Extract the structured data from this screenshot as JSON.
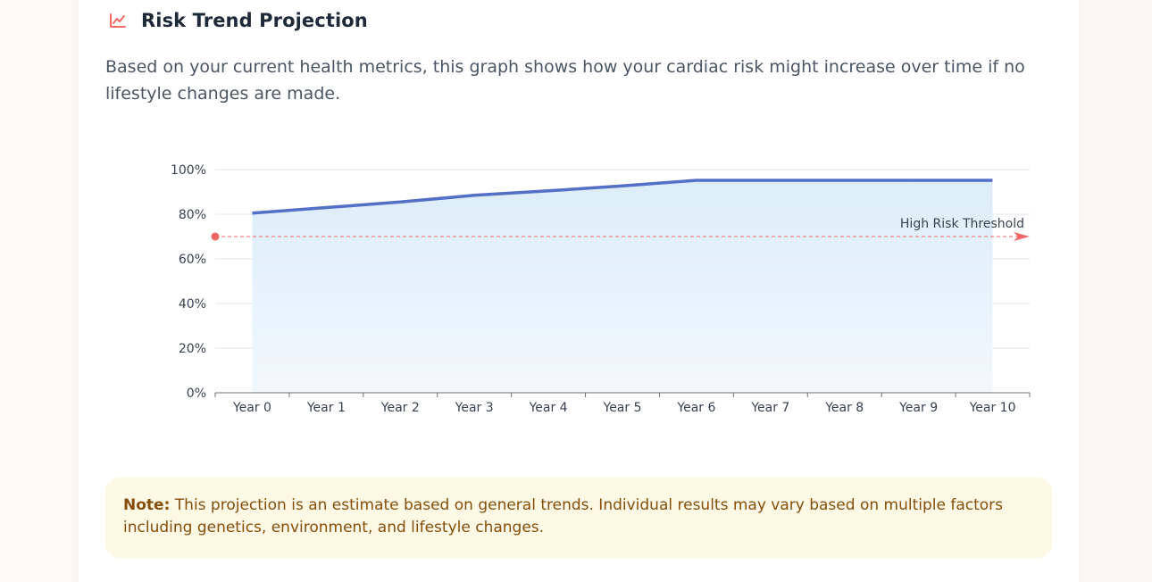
{
  "header": {
    "icon": "trending-up-icon",
    "title": "Risk Trend Projection"
  },
  "description": "Based on your current health metrics, this graph shows how your cardiac risk might increase over time if no lifestyle changes are made.",
  "colors": {
    "accent": "#ef6b62",
    "line": "#5470c6",
    "area_top": "#dcedf9",
    "area_bottom": "#f1f8fd",
    "threshold": "#ee6666",
    "note_bg": "#fef9e5",
    "note_text": "#854d0e"
  },
  "chart_data": {
    "type": "area",
    "title": "",
    "xlabel": "",
    "ylabel": "",
    "categories": [
      "Year 0",
      "Year 1",
      "Year 2",
      "Year 3",
      "Year 4",
      "Year 5",
      "Year 6",
      "Year 7",
      "Year 8",
      "Year 9",
      "Year 10"
    ],
    "series": [
      {
        "values": [
          80.5,
          83,
          85.5,
          88.5,
          90.5,
          92.7,
          95.2,
          95.2,
          95.2,
          95.2,
          95.2
        ]
      }
    ],
    "ylim": [
      0,
      100
    ],
    "yticks": [
      0,
      20,
      40,
      60,
      80,
      100
    ],
    "ytick_suffix": "%",
    "grid": true,
    "threshold": {
      "label": "High Risk Threshold",
      "value": 70
    }
  },
  "note": {
    "label": "Note:",
    "text": " This projection is an estimate based on general trends. Individual results may vary based on multiple factors including genetics, environment, and lifestyle changes."
  }
}
